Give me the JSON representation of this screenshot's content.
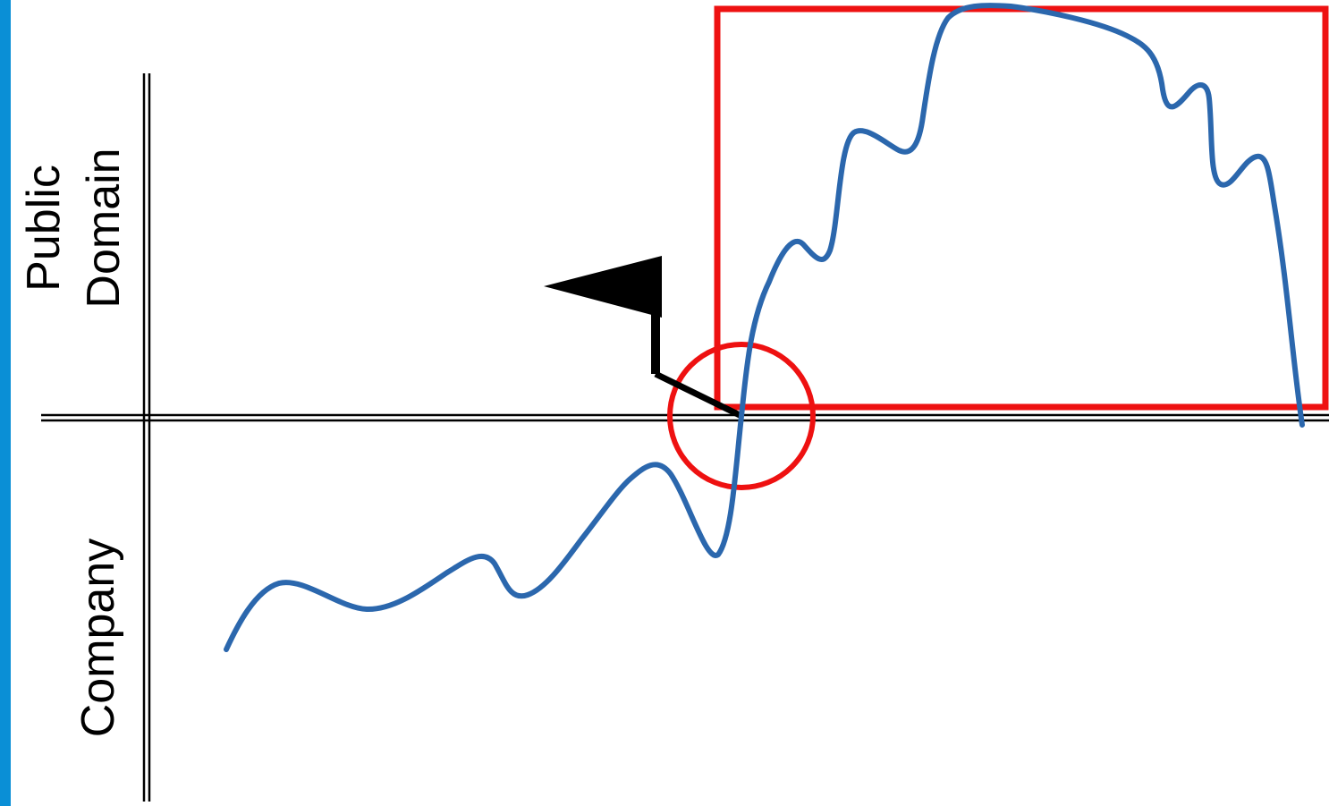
{
  "labels": {
    "upper_line1": "Public",
    "upper_line2": "Domain",
    "lower": "Company"
  },
  "colors": {
    "accent_bar": "#0a8fd6",
    "curve": "#2b67ad",
    "highlight": "#ee1111",
    "axis": "#000000",
    "flag": "#000000",
    "background": "#ffffff"
  },
  "icons": {
    "milestone": "flag-icon"
  }
}
